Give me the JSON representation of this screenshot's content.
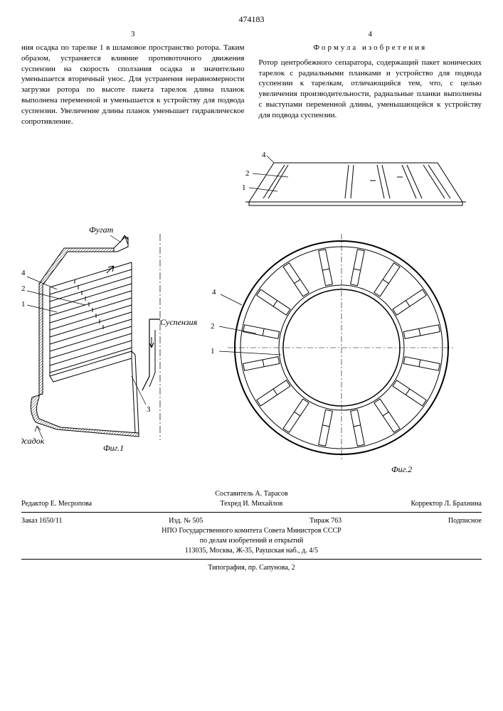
{
  "doc_number": "474183",
  "col_left_num": "3",
  "col_right_num": "4",
  "left_text": "ния осадка по тарелке 1 в шламовое пространство ротора. Таким образом, устраняется влияние противоточного движения суспензии на скорость сползания осадка и значительно уменьшается вторичный унос. Для устранения неравномерности загрузки ротора по высоте пакета тарелок длина планок выполнена переменной и уменьшается к устройству для подвода суспензии. Увеличение длины планок уменьшает гидравлическое сопротивление.",
  "claim_title": "Формула изобретения",
  "right_text": "Ротор центробежного сепаратора, содержащий пакет конических тарелок с радиальными планками и устройство для подвода суспензии к тарелкам, отличающийся тем, что, с целью увеличения производительности, радиальные планки выполнены с выступами переменной длины, уменьшающейся к устройству для подвода суспензии.",
  "fig1": {
    "label_fugat": "Фугат",
    "label_suspension": "Суспензия",
    "label_osadok": "Осадок",
    "label_fig": "Фиг.1",
    "numbers": [
      "1",
      "2",
      "3",
      "4"
    ]
  },
  "fig2": {
    "label_fig": "Фиг.2",
    "numbers": [
      "1",
      "2",
      "4"
    ],
    "top_numbers": [
      "2",
      "4"
    ]
  },
  "footer": {
    "compiler": "Составитель А. Тарасов",
    "editor": "Редактор Е. Месропова",
    "techred": "Техред И. Михайлов",
    "corrector": "Корректор Л. Брахнина",
    "order": "Заказ 1650/11",
    "izd": "Изд. № 505",
    "tirazh": "Тираж 763",
    "podpisnoe": "Подписное",
    "org1": "НПО Государственного комитета Совета Министров СССР",
    "org2": "по делам изобретений и открытий",
    "address": "113035, Москва, Ж-35, Раушская наб., д. 4/5",
    "typography": "Типография, пр. Сапунова, 2"
  },
  "style": {
    "stroke": "#000000",
    "stroke_width": 1,
    "background": "#ffffff",
    "font_size_body": 11,
    "font_size_footer": 10,
    "hatch_spacing": 3
  }
}
